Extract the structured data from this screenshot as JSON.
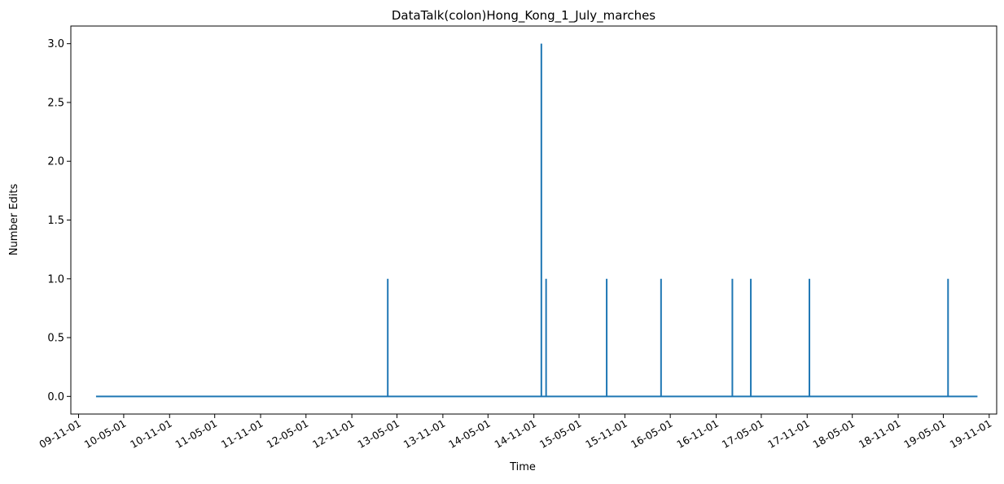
{
  "chart_data": {
    "type": "line",
    "title": "DataTalk(colon)Hong_Kong_1_July_marches",
    "xlabel": "Time",
    "ylabel": "Number Edits",
    "x_tick_labels": [
      "09-11-01",
      "10-05-01",
      "10-11-01",
      "11-05-01",
      "11-11-01",
      "12-05-01",
      "12-11-01",
      "13-05-01",
      "13-11-01",
      "14-05-01",
      "14-11-01",
      "15-05-01",
      "15-11-01",
      "16-05-01",
      "16-11-01",
      "17-05-01",
      "17-11-01",
      "18-05-01",
      "18-11-01",
      "19-05-01",
      "19-11-01"
    ],
    "y_ticks": [
      0.0,
      0.5,
      1.0,
      1.5,
      2.0,
      2.5,
      3.0
    ],
    "y_tick_labels": [
      "0.0",
      "0.5",
      "1.0",
      "1.5",
      "2.0",
      "2.5",
      "3.0"
    ],
    "ylim": [
      -0.15,
      3.15
    ],
    "x_start": "2010-01-10",
    "x_end": "2019-09-15",
    "x_range": [
      "2009-10-01",
      "2019-12-01"
    ],
    "baseline": 0,
    "series": [
      {
        "color": "#1f77b4",
        "points": [
          {
            "x": "2013-03-25",
            "y": 1
          },
          {
            "x": "2014-12-01",
            "y": 3
          },
          {
            "x": "2014-12-20",
            "y": 1
          },
          {
            "x": "2015-08-20",
            "y": 1
          },
          {
            "x": "2016-03-25",
            "y": 1
          },
          {
            "x": "2017-01-05",
            "y": 1
          },
          {
            "x": "2017-03-20",
            "y": 1
          },
          {
            "x": "2017-11-10",
            "y": 1
          },
          {
            "x": "2019-05-20",
            "y": 1
          }
        ]
      }
    ],
    "grid": false
  }
}
